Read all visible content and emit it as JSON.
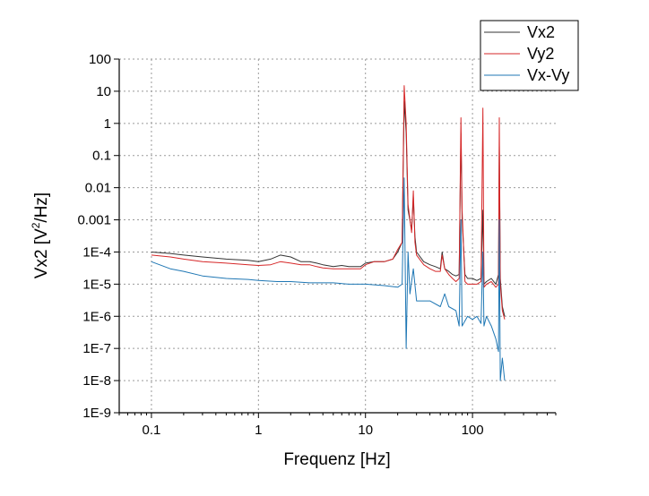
{
  "chart_data": {
    "type": "line",
    "title": "",
    "xlabel": "Frequenz [Hz]",
    "ylabel": {
      "prefix": "Vx2 [V",
      "sup": "2",
      "suffix": "/Hz]"
    },
    "xscale": "log",
    "yscale": "log",
    "xlim": [
      0.05,
      600
    ],
    "ylim": [
      1e-09,
      100
    ],
    "grid": true,
    "legend_position": "top-right",
    "x_ticks": [
      {
        "value": 0.1,
        "label": "0.1"
      },
      {
        "value": 1,
        "label": "1"
      },
      {
        "value": 10,
        "label": "10"
      },
      {
        "value": 100,
        "label": "100"
      }
    ],
    "y_ticks": [
      {
        "value": 100,
        "label": "100"
      },
      {
        "value": 10,
        "label": "10"
      },
      {
        "value": 1,
        "label": "1"
      },
      {
        "value": 0.1,
        "label": "0.1"
      },
      {
        "value": 0.01,
        "label": "0.01"
      },
      {
        "value": 0.001,
        "label": "0.001"
      },
      {
        "value": 0.0001,
        "label": "1E-4"
      },
      {
        "value": 1e-05,
        "label": "1E-5"
      },
      {
        "value": 1e-06,
        "label": "1E-6"
      },
      {
        "value": 1e-07,
        "label": "1E-7"
      },
      {
        "value": 1e-08,
        "label": "1E-8"
      },
      {
        "value": 1e-09,
        "label": "1E-9"
      }
    ],
    "series": [
      {
        "name": "Vx2",
        "color": "#333333",
        "x": [
          0.1,
          0.15,
          0.2,
          0.3,
          0.5,
          0.8,
          1.0,
          1.3,
          1.6,
          2.0,
          2.5,
          3.0,
          3.5,
          4.0,
          5.0,
          6.0,
          7.0,
          8.0,
          9.0,
          10.0,
          12.0,
          15.0,
          18.0,
          20.0,
          22.0,
          23.0,
          24.0,
          25.0,
          27.0,
          28.0,
          29.0,
          30.0,
          35.0,
          40.0,
          45.0,
          50.0,
          52.0,
          55.0,
          60.0,
          65.0,
          70.0,
          75.0,
          78.0,
          80.0,
          85.0,
          90.0,
          100.0,
          110.0,
          120.0,
          125.0,
          128.0,
          135.0,
          150.0,
          165.0,
          175.0,
          178.0,
          182.0,
          190.0,
          200.0
        ],
        "y": [
          0.0001,
          9e-05,
          8e-05,
          7e-05,
          6e-05,
          5.5e-05,
          5e-05,
          6e-05,
          8e-05,
          7e-05,
          5e-05,
          5e-05,
          4.5e-05,
          4e-05,
          3.5e-05,
          3.8e-05,
          3.5e-05,
          3.5e-05,
          3.5e-05,
          4.5e-05,
          5e-05,
          5e-05,
          6e-05,
          0.0001,
          0.0002,
          5.0,
          0.5,
          0.002,
          0.0005,
          0.005,
          0.0003,
          0.0001,
          5e-05,
          4e-05,
          3.5e-05,
          3e-05,
          0.0001,
          3e-05,
          2.5e-05,
          2e-05,
          1.8e-05,
          2e-05,
          0.5,
          0.001,
          2e-05,
          1.5e-05,
          1.5e-05,
          1.3e-05,
          1.5e-05,
          0.002,
          1e-05,
          1.2e-05,
          1.5e-05,
          1e-05,
          2e-05,
          0.2,
          1.5e-05,
          2e-06,
          1e-06
        ]
      },
      {
        "name": "Vy2",
        "color": "#d62728",
        "x": [
          0.1,
          0.15,
          0.2,
          0.3,
          0.5,
          0.8,
          1.0,
          1.3,
          1.6,
          2.0,
          2.5,
          3.0,
          3.5,
          4.0,
          5.0,
          6.0,
          7.0,
          8.0,
          9.0,
          10.0,
          12.0,
          15.0,
          18.0,
          20.0,
          22.0,
          23.0,
          24.0,
          25.0,
          27.0,
          28.0,
          29.0,
          30.0,
          35.0,
          40.0,
          45.0,
          50.0,
          52.0,
          55.0,
          60.0,
          65.0,
          70.0,
          75.0,
          78.0,
          80.0,
          85.0,
          90.0,
          100.0,
          110.0,
          120.0,
          125.0,
          128.0,
          135.0,
          150.0,
          165.0,
          175.0,
          178.0,
          182.0,
          190.0,
          200.0
        ],
        "y": [
          8e-05,
          7e-05,
          6e-05,
          5e-05,
          4.5e-05,
          4e-05,
          3.8e-05,
          4e-05,
          5e-05,
          4.5e-05,
          4e-05,
          4e-05,
          3.5e-05,
          3.2e-05,
          3e-05,
          3e-05,
          3e-05,
          3e-05,
          3e-05,
          4e-05,
          5e-05,
          5e-05,
          6e-05,
          0.00012,
          0.0002,
          15.0,
          1.0,
          0.003,
          0.0004,
          0.008,
          0.0002,
          8e-05,
          4e-05,
          3e-05,
          2.5e-05,
          2.5e-05,
          8e-05,
          3e-05,
          2e-05,
          1.5e-05,
          1.2e-05,
          1.5e-05,
          1.5,
          0.002,
          1.2e-05,
          1e-05,
          1e-05,
          1e-05,
          1.2e-05,
          3.0,
          8e-06,
          1e-05,
          1.2e-05,
          8e-06,
          1e-05,
          1.5,
          1e-05,
          1.5e-06,
          8e-07
        ]
      },
      {
        "name": "Vx-Vy",
        "color": "#1f77b4",
        "x": [
          0.1,
          0.15,
          0.2,
          0.3,
          0.5,
          0.8,
          1.0,
          1.5,
          2.0,
          3.0,
          5.0,
          7.0,
          10.0,
          15.0,
          20.0,
          22.0,
          23.0,
          24.0,
          25.0,
          26.0,
          28.0,
          30.0,
          40.0,
          50.0,
          55.0,
          60.0,
          70.0,
          75.0,
          78.0,
          80.0,
          90.0,
          100.0,
          110.0,
          120.0,
          125.0,
          128.0,
          135.0,
          150.0,
          165.0,
          175.0,
          178.0,
          182.0,
          190.0,
          200.0
        ],
        "y": [
          5e-05,
          3e-05,
          2.5e-05,
          1.8e-05,
          1.5e-05,
          1.4e-05,
          1.3e-05,
          1.2e-05,
          1.2e-05,
          1.1e-05,
          1.1e-05,
          1e-05,
          1e-05,
          9e-06,
          8e-06,
          1e-05,
          0.02,
          1e-07,
          0.0001,
          5e-06,
          3e-05,
          3e-06,
          3e-06,
          2e-06,
          5e-06,
          2e-06,
          1.5e-06,
          5e-07,
          0.001,
          5e-07,
          1e-06,
          8e-07,
          1e-06,
          6e-07,
          0.0001,
          5e-07,
          1e-06,
          5e-07,
          2e-07,
          8e-08,
          0.001,
          1e-08,
          5e-08,
          1e-08
        ]
      }
    ]
  }
}
